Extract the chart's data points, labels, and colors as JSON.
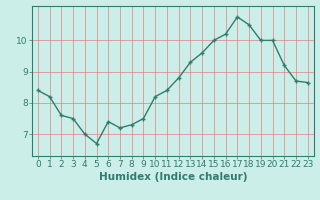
{
  "x": [
    0,
    1,
    2,
    3,
    4,
    5,
    6,
    7,
    8,
    9,
    10,
    11,
    12,
    13,
    14,
    15,
    16,
    17,
    18,
    19,
    20,
    21,
    22,
    23
  ],
  "y": [
    8.4,
    8.2,
    7.6,
    7.5,
    7.0,
    6.7,
    7.4,
    7.2,
    7.3,
    7.5,
    8.2,
    8.4,
    8.8,
    9.3,
    9.6,
    10.0,
    10.2,
    10.75,
    10.5,
    10.0,
    10.0,
    9.2,
    8.7,
    8.65
  ],
  "line_color": "#2e7d6e",
  "marker": "+",
  "marker_size": 3,
  "marker_linewidth": 1.0,
  "bg_color": "#cceee8",
  "grid_color": "#e08080",
  "axis_color": "#2e7d6e",
  "xlabel": "Humidex (Indice chaleur)",
  "xlabel_fontsize": 7.5,
  "tick_fontsize": 6.5,
  "yticks": [
    7,
    8,
    9,
    10
  ],
  "ylim": [
    6.3,
    11.1
  ],
  "xlim": [
    -0.5,
    23.5
  ],
  "linewidth": 1.0
}
